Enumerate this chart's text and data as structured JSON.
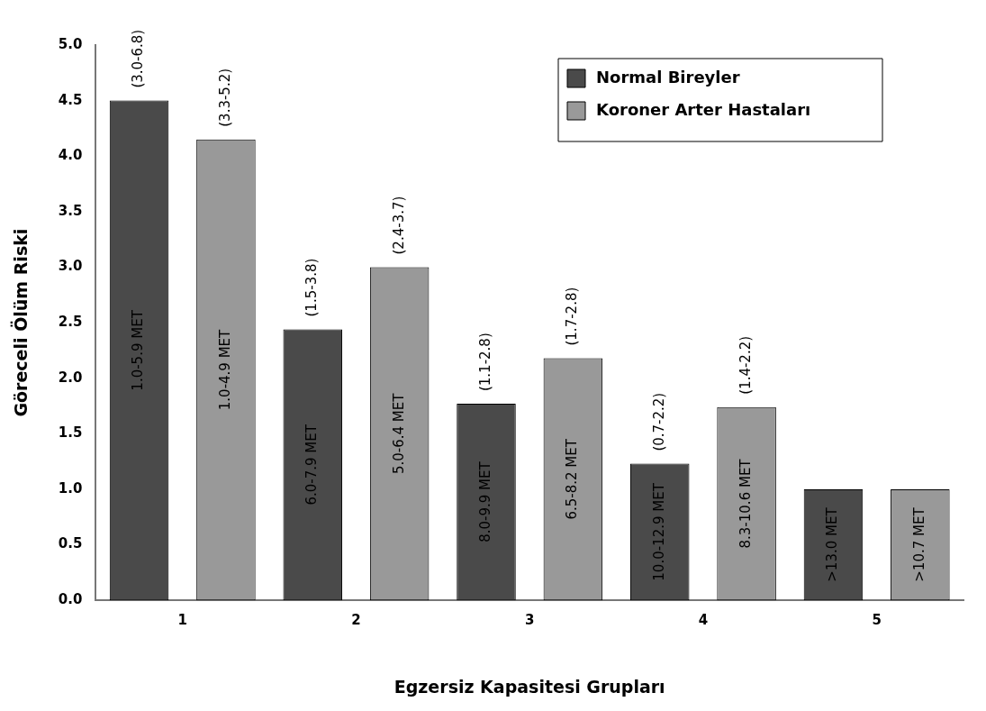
{
  "chart_data": {
    "type": "bar",
    "xlabel": "Egzersiz Kapasitesi Grupları",
    "ylabel": "Göreceli Ölüm Riski",
    "categories": [
      "1",
      "2",
      "3",
      "4",
      "5"
    ],
    "series": [
      {
        "name": "Normal Bireyler",
        "color": "#4a4a4a",
        "values": [
          4.5,
          2.44,
          1.77,
          1.23,
          1.0
        ]
      },
      {
        "name": "Koroner Arter Hastaları",
        "color": "#999999",
        "values": [
          4.15,
          3.0,
          2.18,
          1.74,
          1.0
        ]
      }
    ],
    "ylim": [
      0,
      5
    ],
    "yticks": [
      {
        "value": 0,
        "label": "0.0"
      },
      {
        "value": 0.5,
        "label": "0.5"
      },
      {
        "value": 1,
        "label": "1.0"
      },
      {
        "value": 1.5,
        "label": "1.5"
      },
      {
        "value": 2,
        "label": "2.0"
      },
      {
        "value": 2.5,
        "label": "2.5"
      },
      {
        "value": 3,
        "label": "3.0"
      },
      {
        "value": 3.5,
        "label": "3.5"
      },
      {
        "value": 4,
        "label": "4.0"
      },
      {
        "value": 4.5,
        "label": "4.5"
      },
      {
        "value": 5,
        "label": "5.0"
      }
    ],
    "grid": false,
    "legend": "top right",
    "annotations": [
      "1.0-5.9 MET",
      "1.0-4.9 MET",
      "6.0-7.9 MET",
      "5.0-6.4 MET",
      "8.0-9.9 MET",
      "6.5-8.2 MET",
      "10.0-12.9 MET",
      "8.3-10.6 MET",
      ">13.0 MET",
      ">10.7 MET",
      "(3.0-6.8)",
      "(3.3-5.2)",
      "(1.5-3.8)",
      "(2.4-3.7)",
      "(1.1-2.8)",
      "(1.7-2.8)",
      "(0.7-2.2)",
      "(1.4-2.2)"
    ]
  }
}
